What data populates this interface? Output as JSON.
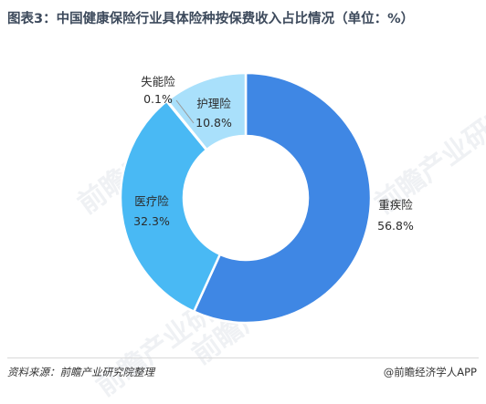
{
  "title": "图表3：中国健康保险行业具体险种按保费收入占比情况（单位：%）",
  "source": "资料来源：前瞻产业研究院整理",
  "credit": "@前瞻经济学人APP",
  "watermark": "前瞻产业研究",
  "chart_data": {
    "type": "pie",
    "style": "donut",
    "title": "图表3：中国健康保险行业具体险种按保费收入占比情况（单位：%）",
    "unit": "%",
    "categories": [
      "重疾险",
      "医疗险",
      "失能险",
      "护理险"
    ],
    "values": [
      56.8,
      32.3,
      0.1,
      10.8
    ],
    "value_labels": [
      "56.8%",
      "32.3%",
      "0.1%",
      "10.8%"
    ],
    "colors": [
      "#3f87e4",
      "#49b9f4",
      "#1f4e93",
      "#a9e0fb"
    ]
  }
}
